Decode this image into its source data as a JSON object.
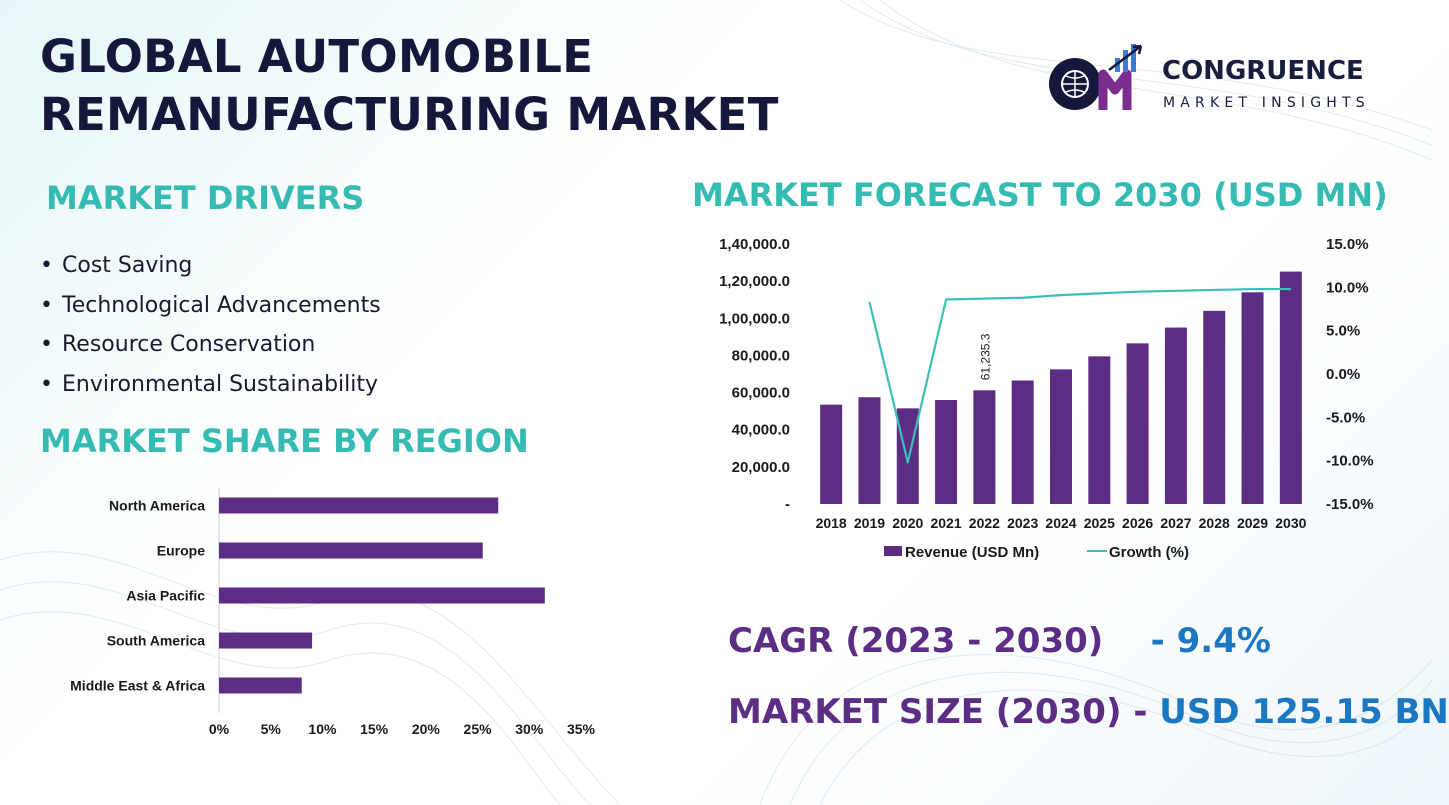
{
  "header": {
    "title_line1": "GLOBAL AUTOMOBILE",
    "title_line2": "REMANUFACTURING MARKET"
  },
  "logo": {
    "name": "CONGRUENCE",
    "subtitle": "MARKET INSIGHTS"
  },
  "sections": {
    "drivers_heading": "MARKET DRIVERS",
    "region_heading": "MARKET SHARE BY REGION",
    "forecast_heading": "MARKET FORECAST TO 2030 (USD MN)"
  },
  "drivers": [
    "Cost Saving",
    "Technological Advancements",
    "Resource Conservation",
    "Environmental  Sustainability"
  ],
  "stats": {
    "cagr_label": "CAGR (2023 - 2030)",
    "cagr_value": "- 9.4%",
    "size_label": "MARKET SIZE (2030) -",
    "size_value": "USD 125.15 BN"
  },
  "colors": {
    "bar": "#5c2d84",
    "line": "#3cc0b5",
    "heading": "#36bbb3",
    "title": "#15173b",
    "accent_blue": "#1c77c3"
  },
  "chart_data": [
    {
      "type": "bar",
      "orientation": "horizontal",
      "categories": [
        "North America",
        "Europe",
        "Asia Pacific",
        "South America",
        "Middle East & Africa"
      ],
      "values": [
        27,
        25.5,
        31.5,
        9,
        8
      ],
      "xlim": [
        0,
        35
      ],
      "ticks": [
        0,
        5,
        10,
        15,
        20,
        25,
        30,
        35
      ],
      "tick_labels": [
        "0%",
        "5%",
        "10%",
        "15%",
        "20%",
        "25%",
        "30%",
        "35%"
      ],
      "grid": false
    },
    {
      "type": "bar",
      "categories": [
        "2018",
        "2019",
        "2020",
        "2021",
        "2022",
        "2023",
        "2024",
        "2025",
        "2026",
        "2027",
        "2028",
        "2029",
        "2030"
      ],
      "series": [
        {
          "name": "Revenue (USD Mn)",
          "type": "bar",
          "axis": "left",
          "values": [
            53500,
            57500,
            51500,
            56000,
            61235.3,
            66500,
            72500,
            79500,
            86500,
            95000,
            104000,
            114000,
            125150
          ]
        },
        {
          "name": "Growth (%)",
          "type": "line",
          "axis": "right",
          "values": [
            null,
            8.3,
            -10.2,
            8.6,
            null,
            8.8,
            9.1,
            9.3,
            9.5,
            9.6,
            9.7,
            9.8,
            9.8
          ]
        }
      ],
      "data_labels": [
        {
          "category": "2022",
          "text": "61,235.3"
        }
      ],
      "y_left": {
        "lim": [
          0,
          140000
        ],
        "ticks": [
          0,
          20000,
          40000,
          60000,
          80000,
          100000,
          120000,
          140000
        ],
        "tick_labels": [
          "-",
          "20,000.0",
          "40,000.0",
          "60,000.0",
          "80,000.0",
          "1,00,000.0",
          "1,20,000.0",
          "1,40,000.0"
        ]
      },
      "y_right": {
        "lim": [
          -15,
          15
        ],
        "ticks": [
          -15,
          -10,
          -5,
          0,
          5,
          10,
          15
        ],
        "tick_labels": [
          "-15.0%",
          "-10.0%",
          "-5.0%",
          "0.0%",
          "5.0%",
          "10.0%",
          "15.0%"
        ]
      },
      "legend": "bottom",
      "grid": false
    }
  ]
}
